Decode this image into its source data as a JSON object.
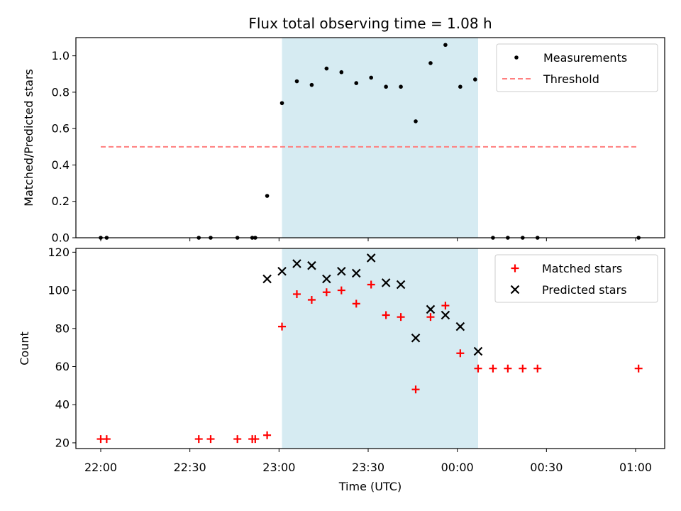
{
  "chart_data": {
    "title": "Flux total observing time = 1.08 h",
    "xlabel": "Time (UTC)",
    "x_ticks": [
      "22:00",
      "22:30",
      "23:00",
      "23:30",
      "00:00",
      "00:30",
      "01:00"
    ],
    "observing_window": {
      "start": "23:01",
      "end": "00:07",
      "color": "#add8e6"
    },
    "panels": [
      {
        "type": "scatter",
        "ylabel": "Matched/Predicted stars",
        "ylim": [
          0,
          1.1
        ],
        "y_ticks": [
          "0.0",
          "0.2",
          "0.4",
          "0.6",
          "0.8",
          "1.0"
        ],
        "legend_position": "top-right",
        "series": [
          {
            "name": "Measurements",
            "marker": "dot",
            "color": "#000000",
            "points": [
              [
                "22:00",
                0.0
              ],
              [
                "22:02",
                0.0
              ],
              [
                "22:33",
                0.0
              ],
              [
                "22:37",
                0.0
              ],
              [
                "22:46",
                0.0
              ],
              [
                "22:51",
                0.0
              ],
              [
                "22:52",
                0.0
              ],
              [
                "22:56",
                0.23
              ],
              [
                "23:01",
                0.74
              ],
              [
                "23:06",
                0.86
              ],
              [
                "23:11",
                0.84
              ],
              [
                "23:16",
                0.93
              ],
              [
                "23:21",
                0.91
              ],
              [
                "23:26",
                0.85
              ],
              [
                "23:31",
                0.88
              ],
              [
                "23:36",
                0.83
              ],
              [
                "23:41",
                0.83
              ],
              [
                "23:46",
                0.64
              ],
              [
                "23:51",
                0.96
              ],
              [
                "23:56",
                1.06
              ],
              [
                "00:01",
                0.83
              ],
              [
                "00:06",
                0.87
              ],
              [
                "00:12",
                0.0
              ],
              [
                "00:17",
                0.0
              ],
              [
                "00:22",
                0.0
              ],
              [
                "00:27",
                0.0
              ],
              [
                "01:01",
                0.0
              ]
            ]
          },
          {
            "name": "Threshold",
            "marker": "dashed-line",
            "color": "#ff7f7f",
            "points": [
              [
                "22:00",
                0.5
              ],
              [
                "01:01",
                0.5
              ]
            ]
          }
        ]
      },
      {
        "type": "scatter",
        "ylabel": "Count",
        "ylim": [
          17,
          122
        ],
        "y_ticks": [
          "20",
          "40",
          "60",
          "80",
          "100",
          "120"
        ],
        "legend_position": "top-right",
        "series": [
          {
            "name": "Matched stars",
            "marker": "plus",
            "color": "#ff0000",
            "points": [
              [
                "22:00",
                22
              ],
              [
                "22:02",
                22
              ],
              [
                "22:33",
                22
              ],
              [
                "22:37",
                22
              ],
              [
                "22:46",
                22
              ],
              [
                "22:51",
                22
              ],
              [
                "22:52",
                22
              ],
              [
                "22:56",
                24
              ],
              [
                "23:01",
                81
              ],
              [
                "23:06",
                98
              ],
              [
                "23:11",
                95
              ],
              [
                "23:16",
                99
              ],
              [
                "23:21",
                100
              ],
              [
                "23:26",
                93
              ],
              [
                "23:31",
                103
              ],
              [
                "23:36",
                87
              ],
              [
                "23:41",
                86
              ],
              [
                "23:46",
                48
              ],
              [
                "23:51",
                86
              ],
              [
                "23:56",
                92
              ],
              [
                "00:01",
                67
              ],
              [
                "00:07",
                59
              ],
              [
                "00:12",
                59
              ],
              [
                "00:17",
                59
              ],
              [
                "00:22",
                59
              ],
              [
                "00:27",
                59
              ],
              [
                "01:01",
                59
              ]
            ]
          },
          {
            "name": "Predicted stars",
            "marker": "x",
            "color": "#000000",
            "points": [
              [
                "22:56",
                106
              ],
              [
                "23:01",
                110
              ],
              [
                "23:06",
                114
              ],
              [
                "23:11",
                113
              ],
              [
                "23:16",
                106
              ],
              [
                "23:21",
                110
              ],
              [
                "23:26",
                109
              ],
              [
                "23:31",
                117
              ],
              [
                "23:36",
                104
              ],
              [
                "23:41",
                103
              ],
              [
                "23:46",
                75
              ],
              [
                "23:51",
                90
              ],
              [
                "23:56",
                87
              ],
              [
                "00:01",
                81
              ],
              [
                "00:07",
                68
              ]
            ]
          }
        ]
      }
    ]
  }
}
